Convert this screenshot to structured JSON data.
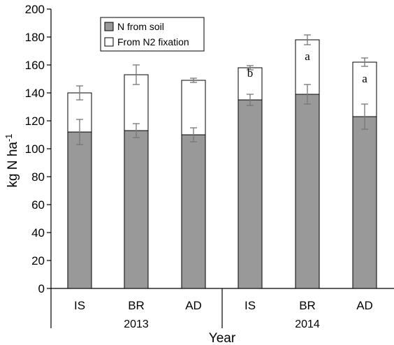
{
  "chart_data": {
    "type": "bar",
    "stacked": true,
    "title": "",
    "xlabel": "Year",
    "ylabel": "kg N ha",
    "ylabel_superscript": "-1",
    "ylim": [
      0,
      200
    ],
    "yticks": [
      0,
      20,
      40,
      60,
      80,
      100,
      120,
      140,
      160,
      180,
      200
    ],
    "grid": false,
    "legend_position": "top-left",
    "categories": [
      "IS",
      "BR",
      "AD",
      "IS",
      "BR",
      "AD"
    ],
    "groups": [
      {
        "label": "2013",
        "categories": [
          "IS",
          "BR",
          "AD"
        ]
      },
      {
        "label": "2014",
        "categories": [
          "IS",
          "BR",
          "AD"
        ]
      }
    ],
    "series": [
      {
        "name": "N from soil",
        "color": "#999999",
        "values": [
          112,
          113,
          110,
          135,
          139,
          123
        ],
        "error": [
          9,
          5,
          5,
          4,
          7,
          9
        ]
      },
      {
        "name": "From N2 fixation",
        "color": "#ffffff",
        "values": [
          28,
          40,
          39,
          23,
          39,
          39
        ],
        "totals": [
          140,
          153,
          149,
          158,
          178,
          162
        ],
        "error": [
          5,
          7,
          1.5,
          1.5,
          3.5,
          3
        ]
      }
    ],
    "annotations": [
      "",
      "",
      "",
      "b",
      "a",
      "a"
    ]
  }
}
